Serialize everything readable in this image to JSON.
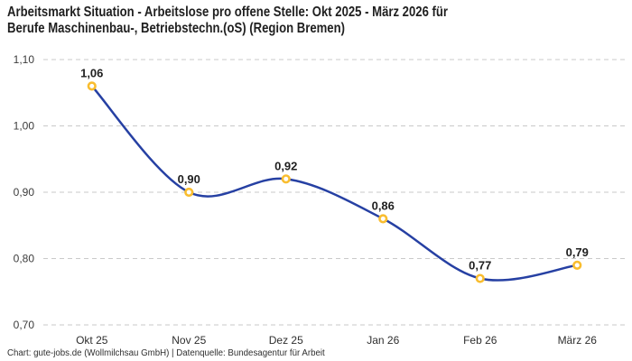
{
  "header": {
    "title_lines": [
      "Arbeitsmarkt Situation - Arbeitslose pro offene Stelle: Okt 2025 - März 2026 für",
      "Berufe Maschinenbau-, Betriebstechn.(oS) (Region Bremen)"
    ]
  },
  "footer": {
    "credit": "Chart: gute-jobs.de (Wollmilchsau GmbH) | Datenquelle: Bundesagentur für Arbeit"
  },
  "chart_data": {
    "type": "line",
    "title": "Arbeitsmarkt Situation - Arbeitslose pro offene Stelle: Okt 2025 - März 2026 für Berufe Maschinenbau-, Betriebstechn.(oS) (Region Bremen)",
    "categories": [
      "Okt 25",
      "Nov 25",
      "Dez 25",
      "Jan 26",
      "Feb 26",
      "März 26"
    ],
    "values": [
      1.06,
      0.9,
      0.92,
      0.86,
      0.77,
      0.79
    ],
    "point_labels": [
      "1,06",
      "0,90",
      "0,92",
      "0,86",
      "0,77",
      "0,79"
    ],
    "ylim": [
      0.7,
      1.1
    ],
    "yticks": [
      1.1,
      1.0,
      0.9,
      0.8,
      0.7
    ],
    "ytick_labels": [
      "1,10",
      "1,00",
      "0,90",
      "0,80",
      "0,70"
    ],
    "xlabel": "",
    "ylabel": "",
    "grid": "horizontal-dashed",
    "legend": "none",
    "smooth": true,
    "line_color": "#2640a3",
    "marker_fill": "#ffffff",
    "marker_stroke": "#f9bd2f",
    "grid_color": "#c9c9c9",
    "label_color": "#1f1f1f"
  }
}
